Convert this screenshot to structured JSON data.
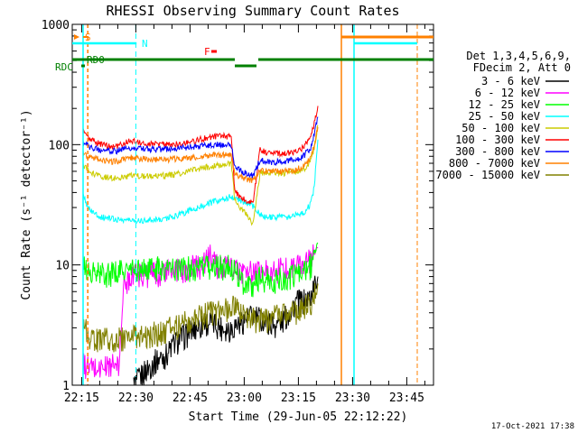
{
  "chart_data": {
    "type": "line",
    "title": "RHESSI Observing Summary Count Rates",
    "xlabel": "Start Time (29-Jun-05 22:12:22)",
    "ylabel": "Count Rate (s⁻¹ detector⁻¹)",
    "yscale": "log",
    "ylim": [
      1,
      1000
    ],
    "xlim_minutes_after_start": [
      0,
      41.5
    ],
    "x_ticks": [
      {
        "label": "22:15",
        "minutes": 2.6
      },
      {
        "label": "22:30",
        "minutes": 17.6
      },
      {
        "label": "22:45",
        "minutes": 32.6
      },
      {
        "label": "23:00",
        "minutes": 47.6
      },
      {
        "label": "23:15",
        "minutes": 62.6
      },
      {
        "label": "23:30",
        "minutes": 77.6
      },
      {
        "label": "23:45",
        "minutes": 92.6
      }
    ],
    "y_ticks": [
      "1",
      "10",
      "100",
      "1000"
    ],
    "legend_header": [
      "Det 1,3,4,5,6,9,",
      "FDecim 2, Att 0"
    ],
    "legend_position": "right",
    "timestamp": "17-Oct-2021 17:38",
    "flags": [
      {
        "label": "S",
        "color": "#ff8000"
      },
      {
        "label": "N",
        "color": "#00ffff"
      },
      {
        "label": "F",
        "color": "#ff0000"
      },
      {
        "label": "RD0",
        "color": "#008000"
      },
      {
        "label": "RDC",
        "color": "#008000"
      }
    ],
    "series": [
      {
        "name": "3 - 6 keV",
        "color": "#000000",
        "values": [
          [
            17,
            1
          ],
          [
            20,
            1.3
          ],
          [
            23,
            1.6
          ],
          [
            26,
            1.8
          ],
          [
            28,
            2.2
          ],
          [
            30,
            2.5
          ],
          [
            32,
            2.7
          ],
          [
            34,
            3
          ],
          [
            36,
            3.2
          ],
          [
            38,
            3.4
          ],
          [
            40,
            3.2
          ],
          [
            42,
            3
          ],
          [
            44,
            3
          ],
          [
            46,
            3.3
          ],
          [
            48,
            3.6
          ],
          [
            50,
            3.8
          ],
          [
            52,
            3.6
          ],
          [
            54,
            3.4
          ],
          [
            56,
            3.2
          ],
          [
            58,
            3.4
          ],
          [
            60,
            4
          ],
          [
            62,
            5
          ],
          [
            64,
            5
          ],
          [
            66,
            5.5
          ],
          [
            68,
            8
          ]
        ]
      },
      {
        "name": "6 - 12 keV",
        "color": "#ff00ff",
        "values": [
          [
            3,
            1.5
          ],
          [
            5,
            1.4
          ],
          [
            8,
            1.4
          ],
          [
            11,
            1.5
          ],
          [
            13,
            1.4
          ],
          [
            14,
            6
          ],
          [
            16,
            8.5
          ],
          [
            20,
            8.5
          ],
          [
            24,
            8.7
          ],
          [
            28,
            9
          ],
          [
            32,
            9.2
          ],
          [
            34,
            10
          ],
          [
            36,
            10
          ],
          [
            38,
            12
          ],
          [
            40,
            10
          ],
          [
            42,
            9.5
          ],
          [
            44,
            9.5
          ],
          [
            46,
            9
          ],
          [
            48,
            9
          ],
          [
            50,
            8.5
          ],
          [
            52,
            8.7
          ],
          [
            54,
            9
          ],
          [
            56,
            9
          ],
          [
            58,
            9.5
          ],
          [
            60,
            9.5
          ],
          [
            62,
            10
          ],
          [
            64,
            10
          ],
          [
            66,
            11
          ],
          [
            68,
            14
          ]
        ]
      },
      {
        "name": "12 - 25 keV",
        "color": "#00ff00",
        "values": [
          [
            3,
            10
          ],
          [
            5,
            8.5
          ],
          [
            8,
            8.5
          ],
          [
            11,
            8.7
          ],
          [
            14,
            9
          ],
          [
            18,
            9.2
          ],
          [
            22,
            9.4
          ],
          [
            26,
            9.5
          ],
          [
            30,
            9.5
          ],
          [
            34,
            9.6
          ],
          [
            38,
            9.6
          ],
          [
            40,
            9.7
          ],
          [
            42,
            9.8
          ],
          [
            44,
            9.8
          ],
          [
            45,
            9
          ],
          [
            46,
            8.5
          ],
          [
            48,
            7
          ],
          [
            50,
            6.5
          ],
          [
            51,
            8
          ],
          [
            52,
            8
          ],
          [
            54,
            7.5
          ],
          [
            56,
            7.5
          ],
          [
            58,
            7.8
          ],
          [
            60,
            8
          ],
          [
            62,
            8.5
          ],
          [
            64,
            8.5
          ],
          [
            66,
            10
          ],
          [
            68,
            15
          ]
        ]
      },
      {
        "name": "25 - 50 keV",
        "color": "#00ffff",
        "values": [
          [
            3,
            37
          ],
          [
            5,
            28
          ],
          [
            8,
            25
          ],
          [
            12,
            24
          ],
          [
            16,
            23.5
          ],
          [
            20,
            23.5
          ],
          [
            24,
            24
          ],
          [
            28,
            25
          ],
          [
            32,
            28
          ],
          [
            36,
            31
          ],
          [
            40,
            34
          ],
          [
            44,
            37
          ],
          [
            46,
            35
          ],
          [
            48,
            33
          ],
          [
            50,
            31
          ],
          [
            52,
            26
          ],
          [
            54,
            25
          ],
          [
            56,
            25
          ],
          [
            58,
            25
          ],
          [
            60,
            25
          ],
          [
            62,
            26
          ],
          [
            64,
            27
          ],
          [
            66,
            32
          ],
          [
            67,
            45
          ],
          [
            68,
            110
          ]
        ]
      },
      {
        "name": "50 - 100 keV",
        "color": "#cccc00",
        "values": [
          [
            3,
            68
          ],
          [
            5,
            58
          ],
          [
            8,
            54
          ],
          [
            12,
            53
          ],
          [
            16,
            55
          ],
          [
            20,
            55
          ],
          [
            24,
            55
          ],
          [
            28,
            56
          ],
          [
            32,
            60
          ],
          [
            36,
            64
          ],
          [
            40,
            67
          ],
          [
            44,
            70
          ],
          [
            45,
            35
          ],
          [
            46,
            30
          ],
          [
            48,
            27
          ],
          [
            50,
            22
          ],
          [
            52,
            58
          ],
          [
            54,
            58
          ],
          [
            56,
            58
          ],
          [
            58,
            58
          ],
          [
            60,
            58
          ],
          [
            62,
            60
          ],
          [
            64,
            62
          ],
          [
            66,
            72
          ],
          [
            67,
            95
          ],
          [
            68,
            145
          ]
        ]
      },
      {
        "name": "100 - 300 keV",
        "color": "#ff0000",
        "values": [
          [
            3,
            130
          ],
          [
            5,
            110
          ],
          [
            8,
            100
          ],
          [
            12,
            95
          ],
          [
            16,
            108
          ],
          [
            20,
            102
          ],
          [
            24,
            100
          ],
          [
            28,
            100
          ],
          [
            32,
            105
          ],
          [
            36,
            112
          ],
          [
            40,
            117
          ],
          [
            44,
            118
          ],
          [
            45,
            42
          ],
          [
            46,
            38
          ],
          [
            48,
            35
          ],
          [
            50,
            32
          ],
          [
            52,
            93
          ],
          [
            54,
            85
          ],
          [
            56,
            85
          ],
          [
            58,
            85
          ],
          [
            60,
            85
          ],
          [
            62,
            88
          ],
          [
            64,
            95
          ],
          [
            66,
            115
          ],
          [
            67,
            150
          ],
          [
            68,
            210
          ]
        ]
      },
      {
        "name": "300 - 800 keV",
        "color": "#0000ff",
        "values": [
          [
            3,
            105
          ],
          [
            5,
            95
          ],
          [
            8,
            90
          ],
          [
            12,
            88
          ],
          [
            16,
            95
          ],
          [
            20,
            92
          ],
          [
            24,
            91
          ],
          [
            28,
            92
          ],
          [
            32,
            95
          ],
          [
            36,
            98
          ],
          [
            40,
            100
          ],
          [
            44,
            100
          ],
          [
            45,
            65
          ],
          [
            46,
            62
          ],
          [
            48,
            58
          ],
          [
            50,
            55
          ],
          [
            52,
            75
          ],
          [
            54,
            72
          ],
          [
            56,
            72
          ],
          [
            58,
            72
          ],
          [
            60,
            73
          ],
          [
            62,
            75
          ],
          [
            64,
            80
          ],
          [
            66,
            95
          ],
          [
            67,
            125
          ],
          [
            68,
            170
          ]
        ]
      },
      {
        "name": "800 - 7000 keV",
        "color": "#ff8000",
        "values": [
          [
            3,
            85
          ],
          [
            5,
            78
          ],
          [
            8,
            75
          ],
          [
            12,
            72
          ],
          [
            16,
            78
          ],
          [
            20,
            76
          ],
          [
            24,
            75
          ],
          [
            28,
            76
          ],
          [
            32,
            78
          ],
          [
            36,
            80
          ],
          [
            40,
            82
          ],
          [
            44,
            82
          ],
          [
            45,
            56
          ],
          [
            46,
            55
          ],
          [
            48,
            52
          ],
          [
            50,
            50
          ],
          [
            52,
            62
          ],
          [
            54,
            60
          ],
          [
            56,
            60
          ],
          [
            58,
            60
          ],
          [
            60,
            60
          ],
          [
            62,
            62
          ],
          [
            64,
            66
          ],
          [
            66,
            78
          ],
          [
            67,
            100
          ],
          [
            68,
            140
          ]
        ]
      },
      {
        "name": "7000 - 15000 keV",
        "color": "#808000",
        "values": [
          [
            3,
            3.2
          ],
          [
            5,
            2.6
          ],
          [
            8,
            2.4
          ],
          [
            11,
            2.4
          ],
          [
            14,
            2.5
          ],
          [
            18,
            2.6
          ],
          [
            22,
            2.7
          ],
          [
            26,
            2.9
          ],
          [
            30,
            3.2
          ],
          [
            34,
            3.6
          ],
          [
            38,
            4
          ],
          [
            42,
            4.2
          ],
          [
            44,
            4.5
          ],
          [
            46,
            4.3
          ],
          [
            48,
            3.5
          ],
          [
            50,
            3.6
          ],
          [
            52,
            3.6
          ],
          [
            54,
            3.6
          ],
          [
            56,
            3.7
          ],
          [
            58,
            3.8
          ],
          [
            60,
            4
          ],
          [
            62,
            4.2
          ],
          [
            64,
            4.5
          ],
          [
            66,
            5
          ],
          [
            68,
            7
          ]
        ]
      }
    ]
  }
}
